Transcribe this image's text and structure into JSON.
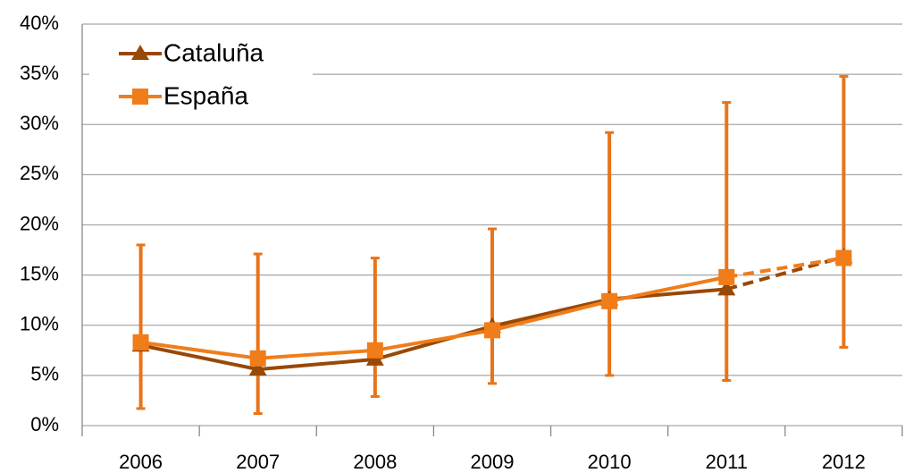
{
  "chart_data": {
    "type": "line",
    "categories": [
      "2006",
      "2007",
      "2008",
      "2009",
      "2010",
      "2011",
      "2012"
    ],
    "series": [
      {
        "name": "Cataluña",
        "color": "#984807",
        "marker": "triangle",
        "dashed_from": "2011",
        "values": [
          8.0,
          5.6,
          6.6,
          9.9,
          12.6,
          13.6,
          16.8
        ]
      },
      {
        "name": "España",
        "color": "#f07d1a",
        "marker": "square",
        "dashed_from": "2011",
        "values": [
          8.3,
          6.7,
          7.5,
          9.5,
          12.4,
          14.8,
          16.7
        ],
        "lower": [
          1.7,
          1.2,
          2.9,
          4.2,
          5.0,
          4.5,
          7.8
        ],
        "upper": [
          18.0,
          17.1,
          16.7,
          19.6,
          29.2,
          32.2,
          34.8
        ],
        "error_color": "#e8741a"
      }
    ],
    "ylim": [
      0,
      40
    ],
    "yticks": [
      {
        "value": 0,
        "label": "0%"
      },
      {
        "value": 5,
        "label": "5%"
      },
      {
        "value": 10,
        "label": "10%"
      },
      {
        "value": 15,
        "label": "15%"
      },
      {
        "value": 20,
        "label": "20%"
      },
      {
        "value": 25,
        "label": "25%"
      },
      {
        "value": 30,
        "label": "30%"
      },
      {
        "value": 35,
        "label": "35%"
      },
      {
        "value": 40,
        "label": "40%"
      }
    ],
    "grid": true,
    "legend": "upper left"
  }
}
